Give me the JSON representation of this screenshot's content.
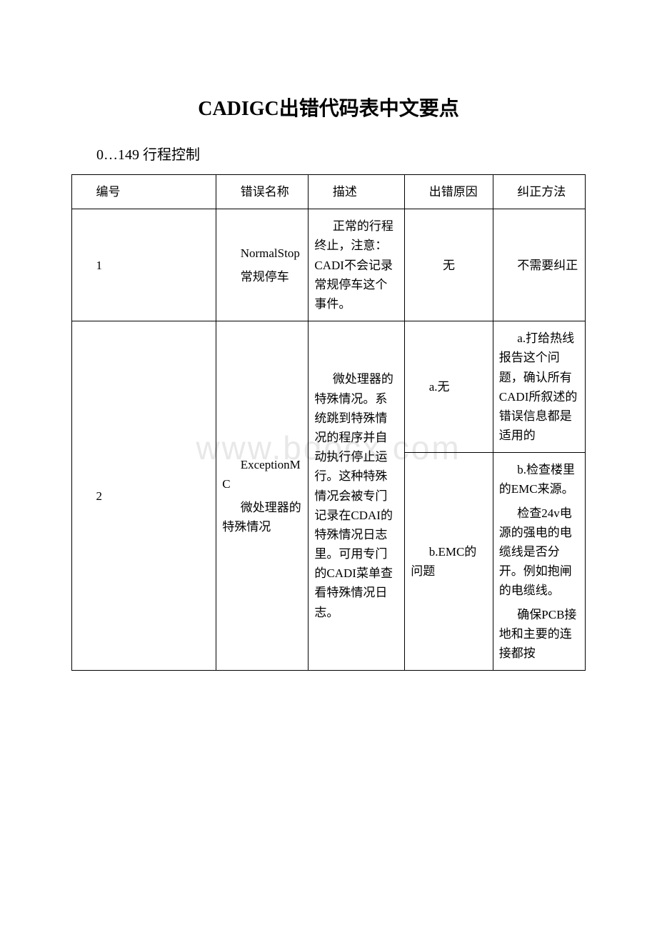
{
  "watermark": "www.bdocx.com",
  "title": "CADIGC出错代码表中文要点",
  "subtitle": "0…149 行程控制",
  "table": {
    "columns": {
      "id": "编号",
      "name": "错误名称",
      "desc": "描述",
      "cause": "出错原因",
      "fix": "纠正方法"
    },
    "rows": [
      {
        "id": "1",
        "name_en": "NormalStop",
        "name_cn": "常规停车",
        "desc": "正常的行程终止，注意：CADI不会记录常规停车这个事件。",
        "cause": "无",
        "fix": "不需要纠正"
      },
      {
        "id": "2",
        "name_en": "ExceptionMC",
        "name_cn": "微处理器的特殊情况",
        "desc": "微处理器的特殊情况。系统跳到特殊情况的程序并自动执行停止运行。这种特殊情况会被专门记录在CDAI的特殊情况日志里。可用专门的CADI菜单查看特殊情况日志。",
        "sub": [
          {
            "cause": "a.无",
            "fix": "a.打给热线报告这个问题，确认所有CADI所叙述的错误信息都是适用的"
          },
          {
            "cause": "b.EMC的问题",
            "fix_lines": [
              "b.检查楼里的EMC来源。",
              "检查24v电源的强电的电缆线是否分开。例如抱闸的电缆线。",
              "确保PCB接地和主要的连接都按"
            ]
          }
        ]
      }
    ]
  },
  "colors": {
    "text": "#000000",
    "border": "#000000",
    "background": "#ffffff",
    "watermark": "#e8e8e8"
  }
}
